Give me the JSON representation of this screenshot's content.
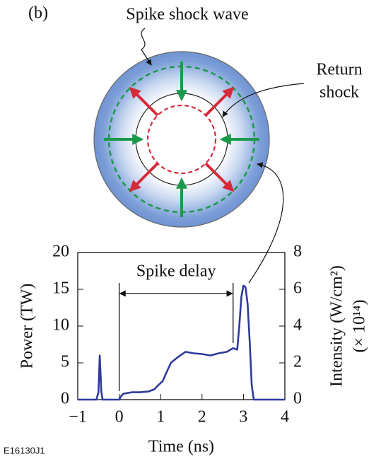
{
  "panel_label": "(b)",
  "diagram": {
    "spike_label": "Spike shock wave",
    "return_label": [
      "Return",
      "shock"
    ]
  },
  "figure_id": "E16130J1",
  "chart_data": {
    "type": "line",
    "xlabel": "Time (ns)",
    "ylabel": "Power (TW)",
    "y2label": [
      "Intensity (W/cm²)",
      "(× 10¹⁴)"
    ],
    "annotation": "Spike delay",
    "color": "#2e3a9c",
    "x": [
      -1,
      -0.55,
      -0.5,
      -0.47,
      -0.43,
      -0.4,
      0,
      0.05,
      0.1,
      0.3,
      0.5,
      0.7,
      0.85,
      0.95,
      1.05,
      1.15,
      1.25,
      1.4,
      1.6,
      1.8,
      2,
      2.2,
      2.4,
      2.6,
      2.75,
      2.85,
      2.9,
      2.95,
      3.0,
      3.05,
      3.1,
      3.15,
      3.2,
      3.25,
      4
    ],
    "values": [
      0,
      0,
      1,
      6,
      1,
      0,
      0,
      0.5,
      0.8,
      1,
      1,
      1.1,
      1.4,
      2,
      2.5,
      3.8,
      5,
      5.7,
      6.5,
      6.3,
      6.2,
      6,
      6.3,
      6.5,
      7,
      6.8,
      10,
      14,
      15.5,
      15.3,
      13,
      8,
      2,
      0,
      0
    ],
    "xlim": [
      -1,
      4
    ],
    "xticks": [
      {
        "value": -1,
        "label": "−1"
      },
      0,
      1,
      2,
      3,
      4
    ],
    "ylim": [
      0,
      20
    ],
    "yticks": [
      0,
      5,
      10,
      15,
      20
    ],
    "y2lim": [
      0,
      8
    ],
    "y2ticks": [
      0,
      2,
      4,
      6,
      8
    ]
  }
}
